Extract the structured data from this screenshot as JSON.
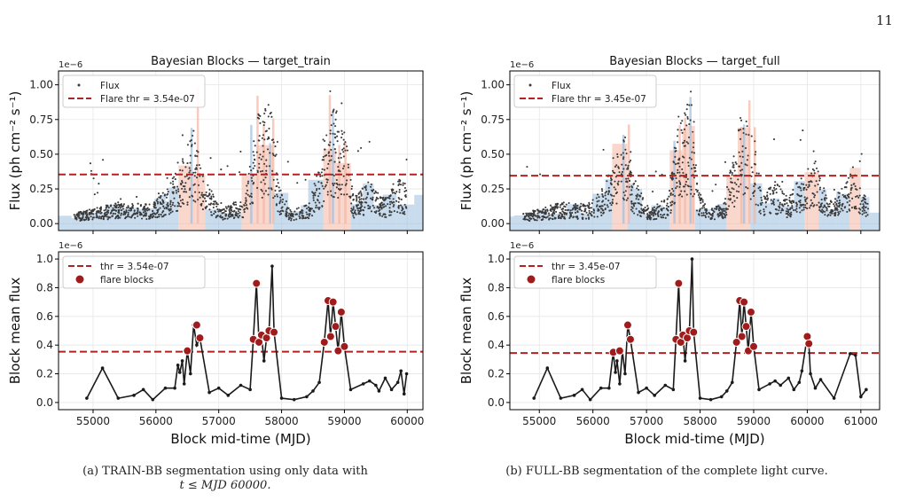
{
  "page_number": "11",
  "caption_a_line1": "(a) TRAIN-BB segmentation using only data with",
  "caption_a_line2": "t ≤ MJD 60000.",
  "caption_b": "(b) FULL-BB segmentation of the complete light curve.",
  "colors": {
    "flux_points": "#3a3a3a",
    "threshold": "#b22222",
    "normal_block": "#9bbfe0",
    "flare_block": "#f4b6a4",
    "flare_marker": "#a01c1c",
    "block_line": "#1a1a1a"
  },
  "chart_data": [
    {
      "id": "train-top",
      "type": "scatter",
      "title": "Bayesian Blocks — target_train",
      "ylabel": "Flux (ph cm⁻² s⁻¹)",
      "xlabel": "",
      "offset_label": "1e−6",
      "xlim": [
        54450,
        60250
      ],
      "ylim": [
        -0.05,
        1.1
      ],
      "yticks": [
        0,
        0.25,
        0.5,
        0.75,
        1.0
      ],
      "yticklabels": [
        "0.00",
        "0.25",
        "0.50",
        "0.75",
        "1.00"
      ],
      "xticks": [
        55000,
        56000,
        57000,
        58000,
        59000,
        60000
      ],
      "show_xticklabels": false,
      "legend": [
        "Flux",
        "Flare thr = 3.54e-07"
      ],
      "legend_position": "upper-left",
      "threshold": 0.354,
      "grid": true
    },
    {
      "id": "train-bottom",
      "type": "line",
      "title": "",
      "ylabel": "Block mean flux",
      "xlabel": "Block mid-time (MJD)",
      "offset_label": "1e−6",
      "xlim": [
        54450,
        60250
      ],
      "ylim": [
        -0.05,
        1.05
      ],
      "yticks": [
        0,
        0.2,
        0.4,
        0.6,
        0.8,
        1.0
      ],
      "yticklabels": [
        "0.0",
        "0.2",
        "0.4",
        "0.6",
        "0.8",
        "1.0"
      ],
      "xticks": [
        55000,
        56000,
        57000,
        58000,
        59000,
        60000
      ],
      "xticklabels": [
        "55000",
        "56000",
        "57000",
        "58000",
        "59000",
        "60000"
      ],
      "show_xticklabels": true,
      "legend": [
        "thr = 3.54e-07",
        "flare blocks"
      ],
      "legend_position": "upper-left",
      "threshold": 0.354,
      "grid": true,
      "x": [
        54900,
        55150,
        55400,
        55650,
        55800,
        55950,
        56150,
        56300,
        56350,
        56380,
        56420,
        56450,
        56500,
        56550,
        56600,
        56650,
        56700,
        56850,
        57000,
        57150,
        57350,
        57500,
        57550,
        57600,
        57640,
        57680,
        57720,
        57760,
        57800,
        57850,
        57880,
        58000,
        58200,
        58400,
        58500,
        58600,
        58680,
        58740,
        58780,
        58820,
        58860,
        58900,
        58950,
        59000,
        59100,
        59300,
        59400,
        59500,
        59550,
        59650,
        59750,
        59850,
        59900,
        59950,
        59990
      ],
      "y": [
        0.03,
        0.24,
        0.03,
        0.05,
        0.09,
        0.02,
        0.1,
        0.1,
        0.26,
        0.21,
        0.29,
        0.13,
        0.36,
        0.2,
        0.54,
        0.4,
        0.45,
        0.07,
        0.1,
        0.05,
        0.12,
        0.09,
        0.44,
        0.83,
        0.42,
        0.47,
        0.29,
        0.45,
        0.5,
        0.95,
        0.49,
        0.03,
        0.02,
        0.04,
        0.08,
        0.14,
        0.42,
        0.71,
        0.46,
        0.7,
        0.53,
        0.36,
        0.63,
        0.39,
        0.09,
        0.13,
        0.15,
        0.12,
        0.08,
        0.17,
        0.09,
        0.14,
        0.22,
        0.06,
        0.2
      ],
      "flare_x": [
        56500,
        56650,
        56700,
        57550,
        57600,
        57640,
        57680,
        57760,
        57800,
        57880,
        58680,
        58740,
        58780,
        58820,
        58860,
        58900,
        58950,
        59000
      ],
      "flare_y": [
        0.36,
        0.54,
        0.45,
        0.44,
        0.83,
        0.42,
        0.47,
        0.45,
        0.5,
        0.49,
        0.42,
        0.71,
        0.46,
        0.7,
        0.53,
        0.36,
        0.63,
        0.39
      ]
    },
    {
      "id": "full-top",
      "type": "scatter",
      "title": "Bayesian Blocks — target_full",
      "ylabel": "Flux (ph cm⁻² s⁻¹)",
      "xlabel": "",
      "offset_label": "1e−6",
      "xlim": [
        54450,
        61350
      ],
      "ylim": [
        -0.05,
        1.1
      ],
      "yticks": [
        0,
        0.25,
        0.5,
        0.75,
        1.0
      ],
      "yticklabels": [
        "0.00",
        "0.25",
        "0.50",
        "0.75",
        "1.00"
      ],
      "xticks": [
        55000,
        56000,
        57000,
        58000,
        59000,
        60000,
        61000
      ],
      "show_xticklabels": false,
      "legend": [
        "Flux",
        "Flare thr = 3.45e-07"
      ],
      "legend_position": "upper-left",
      "threshold": 0.345,
      "grid": true
    },
    {
      "id": "full-bottom",
      "type": "line",
      "title": "",
      "ylabel": "Block mean flux",
      "xlabel": "Block mid-time (MJD)",
      "offset_label": "1e−6",
      "xlim": [
        54450,
        61350
      ],
      "ylim": [
        -0.05,
        1.05
      ],
      "yticks": [
        0,
        0.2,
        0.4,
        0.6,
        0.8,
        1.0
      ],
      "yticklabels": [
        "0.0",
        "0.2",
        "0.4",
        "0.6",
        "0.8",
        "1.0"
      ],
      "xticks": [
        55000,
        56000,
        57000,
        58000,
        59000,
        60000,
        61000
      ],
      "xticklabels": [
        "55000",
        "56000",
        "57000",
        "58000",
        "59000",
        "60000",
        "61000"
      ],
      "show_xticklabels": true,
      "legend": [
        "thr = 3.45e-07",
        "flare blocks"
      ],
      "legend_position": "upper-left",
      "threshold": 0.345,
      "grid": true,
      "x": [
        54900,
        55150,
        55400,
        55650,
        55800,
        55950,
        56150,
        56300,
        56380,
        56420,
        56450,
        56500,
        56550,
        56600,
        56650,
        56700,
        56850,
        57000,
        57150,
        57350,
        57500,
        57550,
        57600,
        57640,
        57680,
        57720,
        57760,
        57800,
        57850,
        57880,
        58000,
        58200,
        58400,
        58500,
        58600,
        58680,
        58740,
        58780,
        58820,
        58860,
        58900,
        58950,
        59000,
        59100,
        59300,
        59400,
        59500,
        59650,
        59750,
        59850,
        59900,
        60000,
        60030,
        60060,
        60150,
        60250,
        60500,
        60800,
        60900,
        61000,
        61100
      ],
      "y": [
        0.03,
        0.24,
        0.03,
        0.05,
        0.09,
        0.02,
        0.1,
        0.1,
        0.35,
        0.21,
        0.29,
        0.13,
        0.36,
        0.2,
        0.54,
        0.44,
        0.07,
        0.1,
        0.05,
        0.12,
        0.09,
        0.44,
        0.83,
        0.42,
        0.47,
        0.29,
        0.45,
        0.5,
        1.0,
        0.49,
        0.03,
        0.02,
        0.04,
        0.08,
        0.14,
        0.42,
        0.71,
        0.46,
        0.7,
        0.53,
        0.36,
        0.63,
        0.39,
        0.09,
        0.13,
        0.15,
        0.12,
        0.17,
        0.09,
        0.14,
        0.22,
        0.46,
        0.41,
        0.2,
        0.1,
        0.16,
        0.03,
        0.34,
        0.33,
        0.04,
        0.09
      ],
      "flare_x": [
        56380,
        56500,
        56650,
        56700,
        57550,
        57600,
        57640,
        57680,
        57760,
        57800,
        57880,
        58680,
        58740,
        58780,
        58820,
        58860,
        58900,
        58950,
        59000,
        60000,
        60030
      ],
      "flare_y": [
        0.35,
        0.36,
        0.54,
        0.44,
        0.44,
        0.83,
        0.42,
        0.47,
        0.45,
        0.5,
        0.49,
        0.42,
        0.71,
        0.46,
        0.7,
        0.53,
        0.36,
        0.63,
        0.39,
        0.46,
        0.41
      ]
    }
  ]
}
